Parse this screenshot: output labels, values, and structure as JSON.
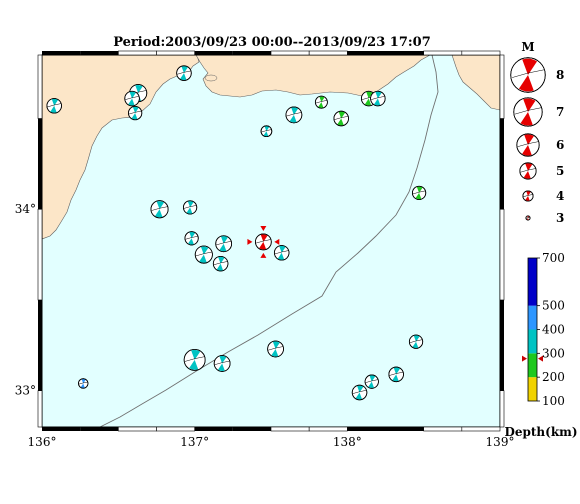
{
  "title": "Period:2003/09/23 00:00--2013/09/23 17:07",
  "map": {
    "lon_range": [
      136,
      139
    ],
    "lat_range": [
      32.8,
      34.85
    ],
    "x_ticks": [
      "136°",
      "137°",
      "138°",
      "139°"
    ],
    "y_ticks": [
      "33°",
      "34°"
    ],
    "colors": {
      "sea": "#e2ffff",
      "land": "#fce6c8",
      "frame": "#000000",
      "trench": "#707070"
    }
  },
  "events": [
    {
      "lon": 136.08,
      "lat": 34.57,
      "mag": 4.6,
      "color": "#00c3c3"
    },
    {
      "lon": 136.63,
      "lat": 34.64,
      "mag": 5.0,
      "color": "#00c3c3"
    },
    {
      "lon": 136.59,
      "lat": 34.61,
      "mag": 4.6,
      "color": "#00c3c3"
    },
    {
      "lon": 136.61,
      "lat": 34.53,
      "mag": 4.4,
      "color": "#00c3c3"
    },
    {
      "lon": 136.93,
      "lat": 34.75,
      "mag": 4.6,
      "color": "#00c3c3"
    },
    {
      "lon": 137.47,
      "lat": 34.43,
      "mag": 4.0,
      "color": "#00c3c3"
    },
    {
      "lon": 137.65,
      "lat": 34.52,
      "mag": 4.8,
      "color": "#00c3c3"
    },
    {
      "lon": 137.83,
      "lat": 34.59,
      "mag": 4.2,
      "color": "#1ec81e"
    },
    {
      "lon": 137.96,
      "lat": 34.5,
      "mag": 4.6,
      "color": "#1ec81e"
    },
    {
      "lon": 138.14,
      "lat": 34.61,
      "mag": 4.6,
      "color": "#1ec81e"
    },
    {
      "lon": 138.2,
      "lat": 34.61,
      "mag": 4.6,
      "color": "#00c3c3"
    },
    {
      "lon": 138.47,
      "lat": 34.09,
      "mag": 4.4,
      "color": "#1ec81e"
    },
    {
      "lon": 136.77,
      "lat": 34.0,
      "mag": 5.0,
      "color": "#00c3c3"
    },
    {
      "lon": 136.97,
      "lat": 34.01,
      "mag": 4.4,
      "color": "#00c3c3"
    },
    {
      "lon": 136.98,
      "lat": 33.84,
      "mag": 4.4,
      "color": "#00c3c3"
    },
    {
      "lon": 137.06,
      "lat": 33.75,
      "mag": 5.0,
      "color": "#00c3c3"
    },
    {
      "lon": 137.19,
      "lat": 33.81,
      "mag": 4.8,
      "color": "#00c3c3"
    },
    {
      "lon": 137.17,
      "lat": 33.7,
      "mag": 4.6,
      "color": "#00c3c3"
    },
    {
      "lon": 137.57,
      "lat": 33.76,
      "mag": 4.6,
      "color": "#00c3c3"
    },
    {
      "lon": 137.53,
      "lat": 33.23,
      "mag": 4.8,
      "color": "#00c3c3"
    },
    {
      "lon": 137.0,
      "lat": 33.17,
      "mag": 5.6,
      "color": "#00c3c3"
    },
    {
      "lon": 137.18,
      "lat": 33.15,
      "mag": 4.8,
      "color": "#00c3c3"
    },
    {
      "lon": 138.45,
      "lat": 33.27,
      "mag": 4.4,
      "color": "#00c3c3"
    },
    {
      "lon": 138.32,
      "lat": 33.09,
      "mag": 4.6,
      "color": "#00c3c3"
    },
    {
      "lon": 138.16,
      "lat": 33.05,
      "mag": 4.4,
      "color": "#00c3c3"
    },
    {
      "lon": 138.08,
      "lat": 32.99,
      "mag": 4.6,
      "color": "#00c3c3"
    },
    {
      "lon": 136.27,
      "lat": 33.04,
      "mag": 3.8,
      "color": "#2d96ff"
    }
  ],
  "main_event": {
    "lon": 137.45,
    "lat": 33.82,
    "mag": 4.8,
    "color": "#e60000"
  },
  "magnitude_legend": {
    "header": "M",
    "items": [
      {
        "label": "8",
        "mag": 8
      },
      {
        "label": "7",
        "mag": 7
      },
      {
        "label": "6",
        "mag": 6
      },
      {
        "label": "5",
        "mag": 5
      },
      {
        "label": "4",
        "mag": 4
      },
      {
        "label": "3",
        "mag": 3
      }
    ],
    "color": "#e60000"
  },
  "depth_scale": {
    "title": "Depth(km)",
    "min": 100,
    "max": 700,
    "tick_labels": [
      "100",
      "200",
      "300",
      "400",
      "500",
      "700"
    ],
    "marker_depth": 278,
    "marker_color": "#c80000",
    "bands": [
      {
        "from": 100,
        "to": 200,
        "color": "#f0d200"
      },
      {
        "from": 200,
        "to": 300,
        "color": "#1ec81e"
      },
      {
        "from": 300,
        "to": 400,
        "color": "#00c3c3"
      },
      {
        "from": 400,
        "to": 500,
        "color": "#2d96ff"
      },
      {
        "from": 500,
        "to": 700,
        "color": "#0000c8"
      }
    ]
  }
}
